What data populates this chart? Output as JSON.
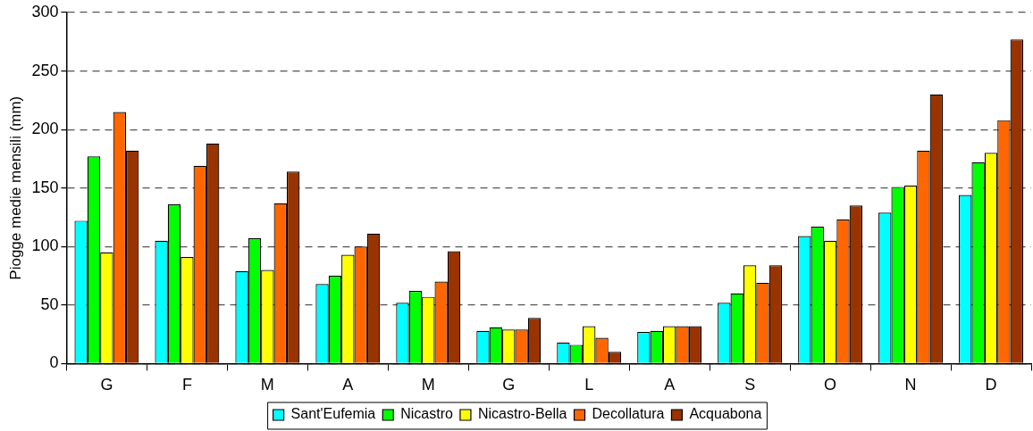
{
  "chart_data": {
    "type": "bar",
    "ylabel": "Piogge medie mensili (mm)",
    "categories": [
      "G",
      "F",
      "M",
      "A",
      "M",
      "G",
      "L",
      "A",
      "S",
      "O",
      "N",
      "D"
    ],
    "series": [
      {
        "name": "Sant'Eufemia",
        "color": "#00ffff",
        "values": [
          122,
          105,
          79,
          68,
          52,
          28,
          18,
          27,
          52,
          109,
          129,
          144
        ]
      },
      {
        "name": "Nicastro",
        "color": "#00ff00",
        "values": [
          177,
          136,
          107,
          75,
          62,
          31,
          16,
          28,
          60,
          117,
          151,
          172
        ]
      },
      {
        "name": "Nicastro-Bella",
        "color": "#ffff00",
        "values": [
          95,
          91,
          80,
          93,
          57,
          29,
          32,
          32,
          84,
          105,
          152,
          180
        ]
      },
      {
        "name": "Decollatura",
        "color": "#ff6600",
        "values": [
          215,
          169,
          137,
          100,
          70,
          29,
          22,
          32,
          69,
          123,
          182,
          208
        ]
      },
      {
        "name": "Acquabona",
        "color": "#993300",
        "values": [
          182,
          188,
          164,
          111,
          96,
          39,
          10,
          32,
          84,
          135,
          230,
          277
        ]
      }
    ],
    "ylim": [
      0,
      300
    ],
    "yticks": [
      0,
      50,
      100,
      150,
      200,
      250,
      300
    ],
    "grid": "y",
    "legend": "bottom"
  }
}
